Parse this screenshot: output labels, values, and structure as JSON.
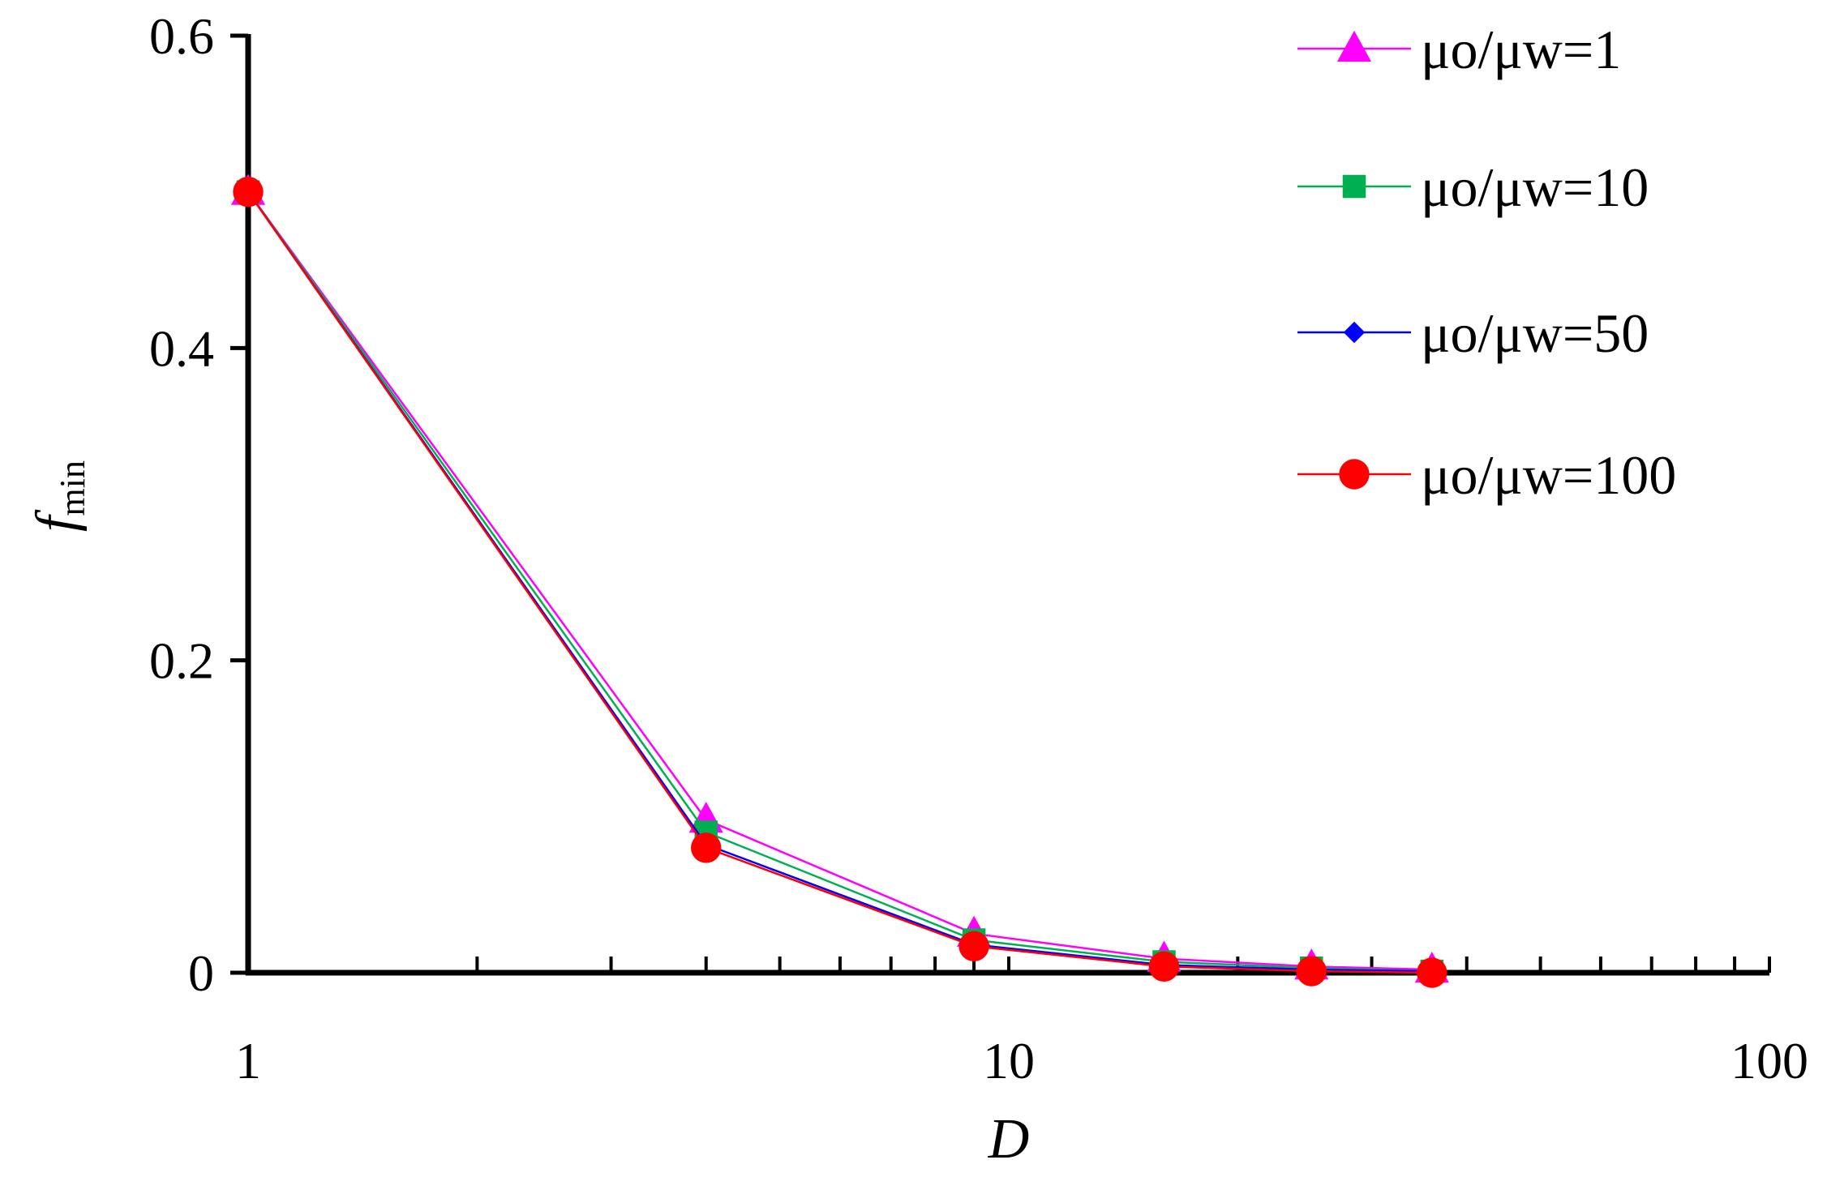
{
  "chart_data": {
    "type": "line",
    "xscale": "log",
    "xlim": [
      1,
      100
    ],
    "ylim": [
      0,
      0.6
    ],
    "xticks": [
      1,
      10,
      100
    ],
    "xtick_labels": [
      "1",
      "10",
      "100"
    ],
    "yticks": [
      0,
      0.2,
      0.4,
      0.6
    ],
    "ytick_labels": [
      "0",
      "0.2",
      "0.4",
      "0.6"
    ],
    "xlabel": "D",
    "ylabel": {
      "main": "f",
      "sub": "min"
    },
    "grid": false,
    "legend_position": "top-right",
    "x": [
      1,
      4,
      9,
      16,
      25,
      36
    ],
    "series": [
      {
        "name": "μo/μw=1",
        "color": "#ff00ff",
        "marker": "triangle",
        "values": [
          0.5,
          0.098,
          0.025,
          0.009,
          0.004,
          0.002
        ]
      },
      {
        "name": "μo/μw=10",
        "color": "#00b050",
        "marker": "square",
        "values": [
          0.5,
          0.09,
          0.021,
          0.007,
          0.003,
          0.001
        ]
      },
      {
        "name": "μo/μw=50",
        "color": "#0000ff",
        "marker": "diamond",
        "values": [
          0.5,
          0.082,
          0.018,
          0.005,
          0.002,
          0.001
        ]
      },
      {
        "name": "μo/μw=100",
        "color": "#ff0000",
        "marker": "circle",
        "values": [
          0.5,
          0.08,
          0.017,
          0.004,
          0.001,
          0.0
        ]
      }
    ]
  }
}
